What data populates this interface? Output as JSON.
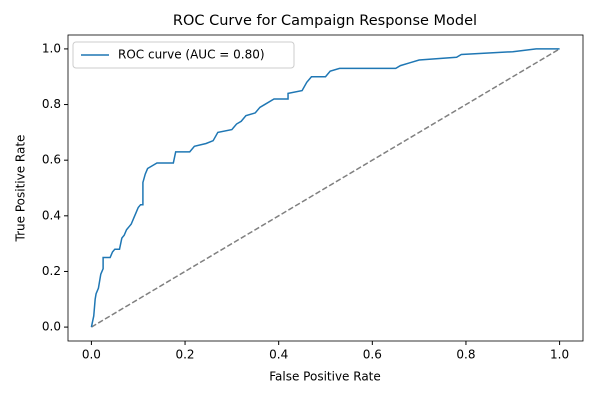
{
  "chart_data": {
    "type": "line",
    "title": "ROC Curve for Campaign Response Model",
    "x_label": "False Positive Rate",
    "y_label": "True Positive Rate",
    "xlim": [
      -0.05,
      1.05
    ],
    "ylim": [
      -0.05,
      1.05
    ],
    "xticks": [
      {
        "value": 0,
        "label": "0.0"
      },
      0.2,
      0.4,
      0.6,
      0.8,
      {
        "value": 1,
        "label": "1.0"
      }
    ],
    "yticks": [
      {
        "value": 0,
        "label": "0.0"
      },
      0.2,
      0.4,
      0.6,
      0.8,
      {
        "value": 1,
        "label": "1.0"
      }
    ],
    "legend": "upper left",
    "grid": false,
    "series": [
      {
        "name": "ROC curve (AUC = 0.80)",
        "color": "#1f77b4",
        "x": [
          0,
          0.005,
          0.008,
          0.01,
          0.015,
          0.02,
          0.025,
          0.025,
          0.04,
          0.045,
          0.05,
          0.06,
          0.065,
          0.07,
          0.075,
          0.08,
          0.085,
          0.09,
          0.095,
          0.1,
          0.105,
          0.11,
          0.11,
          0.115,
          0.12,
          0.13,
          0.14,
          0.175,
          0.18,
          0.21,
          0.22,
          0.245,
          0.26,
          0.27,
          0.3,
          0.31,
          0.32,
          0.33,
          0.35,
          0.36,
          0.37,
          0.39,
          0.42,
          0.42,
          0.45,
          0.46,
          0.47,
          0.5,
          0.51,
          0.53,
          0.65,
          0.66,
          0.68,
          0.7,
          0.78,
          0.79,
          0.9,
          0.95,
          1.0
        ],
        "values": [
          0,
          0.04,
          0.1,
          0.12,
          0.14,
          0.19,
          0.21,
          0.25,
          0.25,
          0.27,
          0.28,
          0.28,
          0.32,
          0.33,
          0.35,
          0.36,
          0.37,
          0.39,
          0.41,
          0.43,
          0.44,
          0.44,
          0.52,
          0.55,
          0.57,
          0.58,
          0.59,
          0.59,
          0.63,
          0.63,
          0.65,
          0.66,
          0.67,
          0.7,
          0.71,
          0.73,
          0.74,
          0.76,
          0.77,
          0.79,
          0.8,
          0.82,
          0.82,
          0.84,
          0.85,
          0.88,
          0.9,
          0.9,
          0.92,
          0.93,
          0.93,
          0.94,
          0.95,
          0.96,
          0.97,
          0.98,
          0.99,
          1.0,
          1.0
        ]
      },
      {
        "color": "#808080",
        "dash": true,
        "x": [
          0,
          1
        ],
        "values": [
          0,
          1
        ]
      }
    ]
  }
}
